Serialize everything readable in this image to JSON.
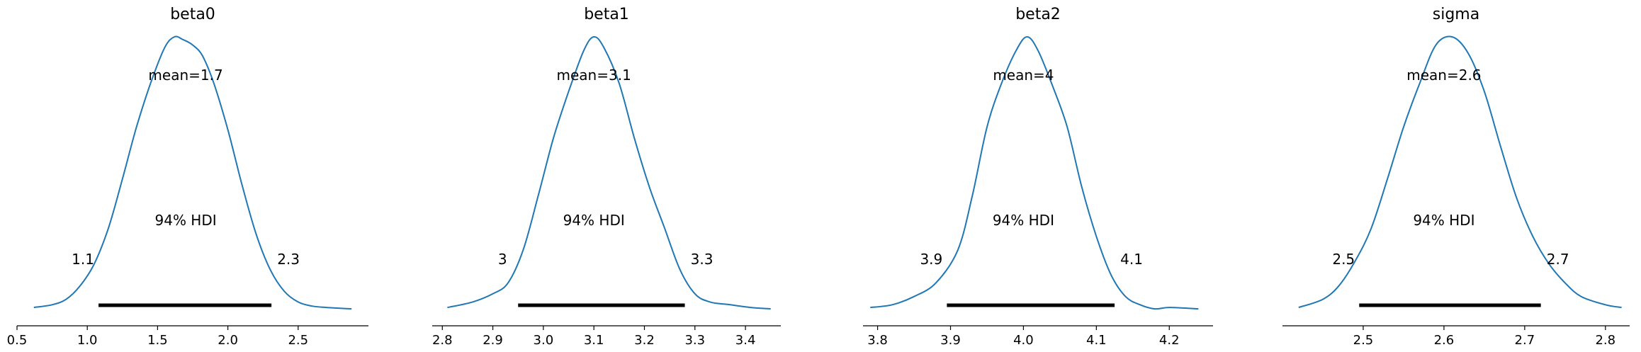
{
  "chart_data": [
    {
      "type": "line",
      "title": "beta0",
      "xlim": [
        0.5,
        3.0
      ],
      "xticks": [
        "0.5",
        "1.0",
        "1.5",
        "2.0",
        "2.5"
      ],
      "mean_label": "mean=1.7",
      "hdi_label": "94% HDI",
      "hdi": [
        1.08,
        2.31
      ],
      "hdi_lower_label": "1.1",
      "hdi_upper_label": "2.3",
      "density": {
        "x": [
          0.62,
          0.75,
          0.85,
          0.95,
          1.05,
          1.15,
          1.25,
          1.35,
          1.45,
          1.55,
          1.62,
          1.68,
          1.75,
          1.82,
          1.9,
          2.0,
          2.1,
          2.2,
          2.3,
          2.4,
          2.5,
          2.6,
          2.7,
          2.88
        ],
        "y": [
          0.01,
          0.02,
          0.04,
          0.09,
          0.17,
          0.3,
          0.48,
          0.67,
          0.83,
          0.96,
          1.0,
          0.99,
          0.97,
          0.93,
          0.83,
          0.66,
          0.46,
          0.28,
          0.15,
          0.07,
          0.03,
          0.015,
          0.01,
          0.005
        ]
      }
    },
    {
      "type": "line",
      "title": "beta1",
      "xlim": [
        2.78,
        3.47
      ],
      "xticks": [
        "2.8",
        "2.9",
        "3.0",
        "3.1",
        "3.2",
        "3.3",
        "3.4"
      ],
      "mean_label": "mean=3.1",
      "hdi_label": "94% HDI",
      "hdi": [
        2.95,
        3.28
      ],
      "hdi_lower_label": "3",
      "hdi_upper_label": "3.3",
      "density": {
        "x": [
          2.81,
          2.86,
          2.9,
          2.93,
          2.96,
          2.99,
          3.02,
          3.05,
          3.08,
          3.1,
          3.12,
          3.15,
          3.18,
          3.21,
          3.24,
          3.27,
          3.3,
          3.33,
          3.37,
          3.41,
          3.45
        ],
        "y": [
          0.01,
          0.03,
          0.06,
          0.1,
          0.22,
          0.42,
          0.63,
          0.8,
          0.95,
          1.0,
          0.96,
          0.83,
          0.63,
          0.45,
          0.3,
          0.15,
          0.06,
          0.03,
          0.02,
          0.01,
          0.005
        ]
      }
    },
    {
      "type": "line",
      "title": "beta2",
      "xlim": [
        3.78,
        4.26
      ],
      "xticks": [
        "3.8",
        "3.9",
        "4.0",
        "4.1",
        "4.2"
      ],
      "mean_label": "mean=4",
      "hdi_label": "94% HDI",
      "hdi": [
        3.895,
        4.125
      ],
      "hdi_lower_label": "3.9",
      "hdi_upper_label": "4.1",
      "density": {
        "x": [
          3.79,
          3.82,
          3.85,
          3.88,
          3.91,
          3.93,
          3.95,
          3.97,
          3.99,
          4.005,
          4.02,
          4.04,
          4.06,
          4.08,
          4.1,
          4.12,
          4.14,
          4.16,
          4.18,
          4.2,
          4.24
        ],
        "y": [
          0.01,
          0.02,
          0.05,
          0.1,
          0.22,
          0.42,
          0.67,
          0.83,
          0.95,
          1.0,
          0.95,
          0.82,
          0.67,
          0.45,
          0.27,
          0.13,
          0.05,
          0.02,
          0.005,
          0.01,
          0.005
        ]
      }
    },
    {
      "type": "line",
      "title": "sigma",
      "xlim": [
        2.4,
        2.83
      ],
      "xticks": [
        "2.5",
        "2.6",
        "2.7",
        "2.8"
      ],
      "mean_label": "mean=2.6",
      "hdi_label": "94% HDI",
      "hdi": [
        2.495,
        2.72
      ],
      "hdi_lower_label": "2.5",
      "hdi_upper_label": "2.7",
      "density": {
        "x": [
          2.42,
          2.45,
          2.47,
          2.49,
          2.51,
          2.53,
          2.55,
          2.57,
          2.59,
          2.61,
          2.63,
          2.65,
          2.67,
          2.69,
          2.71,
          2.73,
          2.75,
          2.77,
          2.8,
          2.82
        ],
        "y": [
          0.01,
          0.04,
          0.09,
          0.18,
          0.3,
          0.48,
          0.67,
          0.83,
          0.97,
          1.0,
          0.94,
          0.8,
          0.6,
          0.41,
          0.27,
          0.17,
          0.1,
          0.05,
          0.02,
          0.01
        ]
      }
    }
  ],
  "colors": {
    "density_line": "#1f77b4",
    "hdi_bar": "#000000",
    "text": "#000000"
  }
}
